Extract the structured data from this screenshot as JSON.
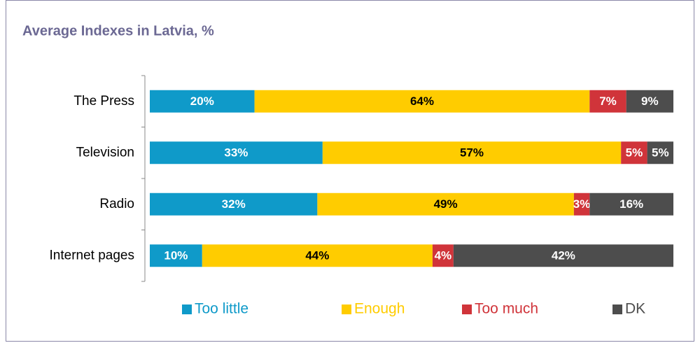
{
  "chart_data": {
    "type": "stacked-bar-horizontal",
    "title": "Average Indexes in Latvia, %",
    "categories": [
      "The Press",
      "Television",
      "Radio",
      "Internet pages"
    ],
    "series": [
      {
        "name": "Too little",
        "color": "#0f9ac9",
        "values": [
          20,
          33,
          32,
          10
        ],
        "value_labels": [
          "20%",
          "33%",
          "32%",
          "10%"
        ]
      },
      {
        "name": "Enough",
        "color": "#ffcc00",
        "values": [
          64,
          57,
          49,
          44
        ],
        "value_labels": [
          "64%",
          "57%",
          "49%",
          "44%"
        ]
      },
      {
        "name": "Too much",
        "color": "#d0343a",
        "values": [
          7,
          5,
          3,
          4
        ],
        "value_labels": [
          "7%",
          "5%",
          "3%",
          "4%"
        ]
      },
      {
        "name": "DK",
        "color": "#4d4d4d",
        "values": [
          9,
          5,
          16,
          42
        ],
        "value_labels": [
          "9%",
          "5%",
          "16%",
          "42%"
        ]
      }
    ],
    "legend": "bottom"
  }
}
